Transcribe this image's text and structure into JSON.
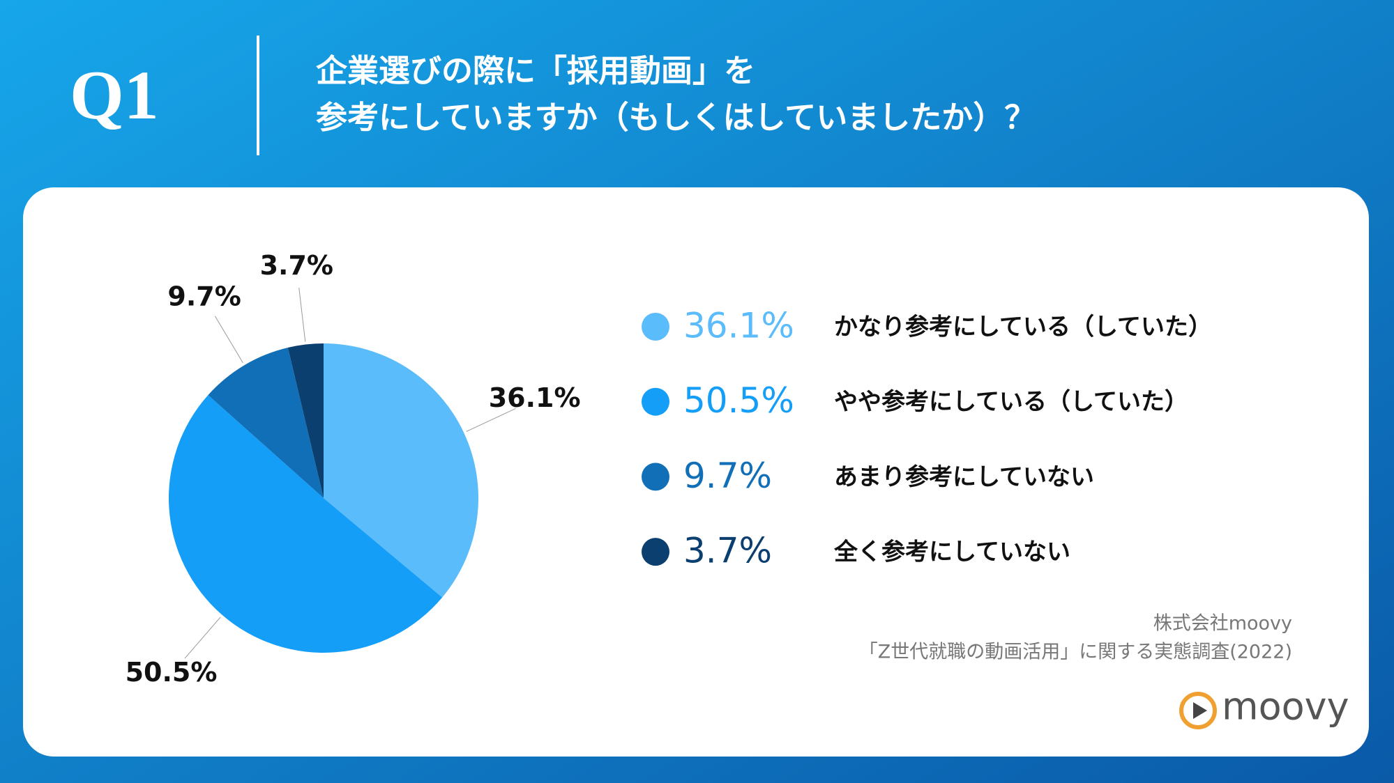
{
  "chart_data": {
    "type": "pie",
    "question_number": "Q1",
    "title_lines": [
      "企業選びの際に「採用動画」を",
      "参考にしていますか（もしくはしていましたか）？"
    ],
    "categories": [
      "かなり参考にしている（していた）",
      "やや参考にしている（していた）",
      "あまり参考にしていない",
      "全く参考にしていない"
    ],
    "values": [
      36.1,
      50.5,
      9.7,
      3.7
    ],
    "value_labels": [
      "36.1%",
      "50.5%",
      "9.7%",
      "3.7%"
    ],
    "colors": [
      "#5bbcfb",
      "#149ef8",
      "#106fb6",
      "#0b3f6f"
    ],
    "source_lines": [
      "株式会社moovy",
      "「Z世代就職の動画活用」に関する実態調査(2022)"
    ],
    "logo": "moovy"
  }
}
